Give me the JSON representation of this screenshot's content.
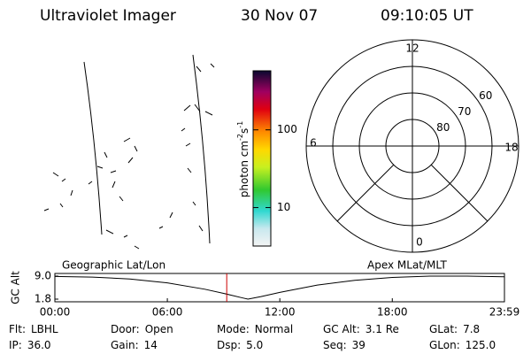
{
  "header": {
    "title": "Ultraviolet Imager",
    "date": "30 Nov 07",
    "time": "09:10:05 UT"
  },
  "colorbar": {
    "label": {
      "text": "photon cm",
      "exp1": "-2",
      "mid": "s",
      "exp2": "-1"
    },
    "scale": "log",
    "lim": [
      3.2,
      575
    ],
    "ticks": [
      10,
      100
    ]
  },
  "polar": {
    "lat_lim": [
      90,
      50
    ],
    "lat_circles": [
      80,
      70,
      60
    ],
    "mlt_labels": [
      12,
      18,
      6,
      0
    ]
  },
  "chart_data": {
    "type": "line",
    "y_label": "GC Alt",
    "left_label": "Geographic Lat/Lon",
    "right_label": "Apex MLat/MLT",
    "x": [
      0,
      2,
      4,
      6,
      8,
      9,
      10,
      10.3,
      11,
      12,
      14,
      16,
      18,
      20,
      22,
      23.983
    ],
    "values": [
      8.9,
      8.7,
      8.1,
      6.9,
      4.9,
      3.6,
      2.2,
      1.8,
      2.6,
      3.9,
      6.2,
      7.7,
      8.6,
      9.0,
      9.0,
      8.8
    ],
    "color": "#000000",
    "xlim": [
      0,
      23.983
    ],
    "xticks": [
      {
        "value": 0,
        "label": "00:00"
      },
      {
        "value": 6,
        "label": "06:00"
      },
      {
        "value": 12,
        "label": "12:00"
      },
      {
        "value": 18,
        "label": "18:00"
      },
      {
        "value": 23.983,
        "label": "23:59"
      }
    ],
    "ylim": [
      1.8,
      9.0
    ],
    "yticks": [
      {
        "value": 9.0,
        "label": "9.0"
      },
      {
        "value": 1.8,
        "label": "1.8"
      }
    ],
    "marker_x": 9.168,
    "marker_color": "#cc0000"
  },
  "info": {
    "rows": [
      [
        {
          "label": "Flt:",
          "value": "LBHL"
        },
        {
          "label": "Door:",
          "value": "Open"
        },
        {
          "label": "Mode:",
          "value": "Normal"
        },
        {
          "label": "GC Alt:",
          "value": "3.1 Re"
        },
        {
          "label": "GLat:",
          "value": "7.8"
        }
      ],
      [
        {
          "label": "IP:",
          "value": "36.0"
        },
        {
          "label": "Gain:",
          "value": "14"
        },
        {
          "label": "Dsp:",
          "value": "5.0"
        },
        {
          "label": "Seq:",
          "value": "39"
        },
        {
          "label": "GLon:",
          "value": "125.0"
        }
      ]
    ]
  }
}
